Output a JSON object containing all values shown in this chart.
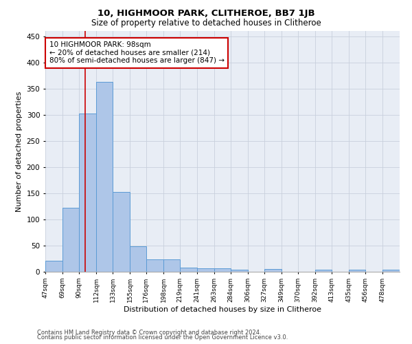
{
  "title": "10, HIGHMOOR PARK, CLITHEROE, BB7 1JB",
  "subtitle": "Size of property relative to detached houses in Clitheroe",
  "xlabel": "Distribution of detached houses by size in Clitheroe",
  "ylabel": "Number of detached properties",
  "footer_line1": "Contains HM Land Registry data © Crown copyright and database right 2024.",
  "footer_line2": "Contains public sector information licensed under the Open Government Licence v3.0.",
  "annotation_line1": "10 HIGHMOOR PARK: 98sqm",
  "annotation_line2": "← 20% of detached houses are smaller (214)",
  "annotation_line3": "80% of semi-detached houses are larger (847) →",
  "property_line_x": 98,
  "bar_edges": [
    47,
    69,
    90,
    112,
    133,
    155,
    176,
    198,
    219,
    241,
    263,
    284,
    306,
    327,
    349,
    370,
    392,
    413,
    435,
    456,
    478
  ],
  "bar_heights": [
    21,
    122,
    302,
    363,
    152,
    48,
    24,
    24,
    8,
    6,
    6,
    4,
    0,
    5,
    0,
    0,
    4,
    0,
    4,
    0,
    4
  ],
  "bar_color": "#aec6e8",
  "bar_edgecolor": "#5b9bd5",
  "vline_color": "#cc0000",
  "annotation_box_edgecolor": "#cc0000",
  "ylim": [
    0,
    460
  ],
  "grid_color": "#c8d0dc",
  "bg_color": "#e8edf5",
  "title_fontsize": 9.5,
  "subtitle_fontsize": 8.5,
  "tick_label_fontsize": 6.5,
  "ylabel_fontsize": 8,
  "xlabel_fontsize": 8,
  "annotation_fontsize": 7.5,
  "footer_fontsize": 6
}
